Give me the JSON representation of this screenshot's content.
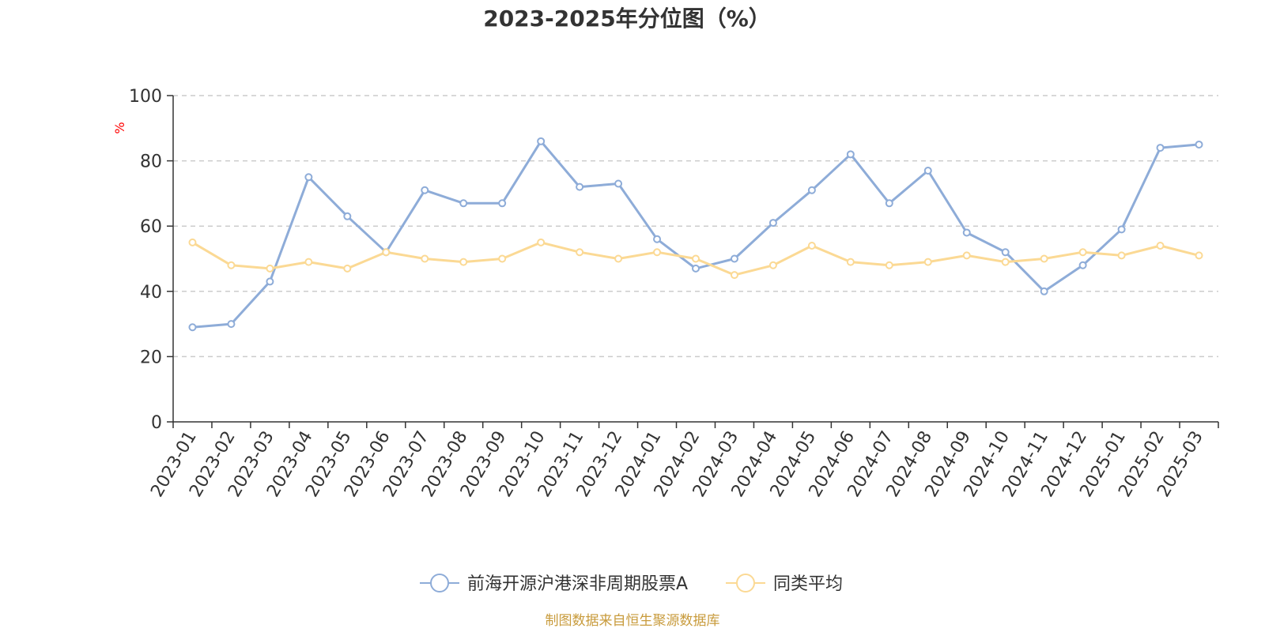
{
  "chart_data": {
    "type": "line",
    "title": "2023-2025年分位图（%）",
    "ylabel": "%",
    "ylim": [
      0,
      100
    ],
    "yticks": [
      "0",
      "20",
      "40",
      "60",
      "80",
      "100"
    ],
    "grid": true,
    "legend_position": "bottom-center",
    "categories": [
      "2023-01",
      "2023-02",
      "2023-03",
      "2023-04",
      "2023-05",
      "2023-06",
      "2023-07",
      "2023-08",
      "2023-09",
      "2023-10",
      "2023-11",
      "2023-12",
      "2024-01",
      "2024-02",
      "2024-03",
      "2024-04",
      "2024-05",
      "2024-06",
      "2024-07",
      "2024-08",
      "2024-09",
      "2024-10",
      "2024-11",
      "2024-12",
      "2025-01",
      "2025-02",
      "2025-03"
    ],
    "series": [
      {
        "name": "前海开源沪港深非周期股票A",
        "color": "#8eacd8",
        "values": [
          29,
          30,
          43,
          75,
          63,
          52,
          71,
          67,
          67,
          86,
          72,
          73,
          56,
          47,
          50,
          61,
          71,
          82,
          67,
          77,
          58,
          52,
          40,
          48,
          59,
          84,
          85
        ]
      },
      {
        "name": "同类平均",
        "color": "#fbd994",
        "values": [
          55,
          48,
          47,
          49,
          47,
          52,
          50,
          49,
          50,
          55,
          52,
          50,
          52,
          50,
          45,
          48,
          54,
          49,
          48,
          49,
          51,
          49,
          50,
          52,
          51,
          54,
          51
        ]
      }
    ]
  },
  "footer": {
    "source": "制图数据来自恒生聚源数据库",
    "color": "#c89b3c"
  }
}
